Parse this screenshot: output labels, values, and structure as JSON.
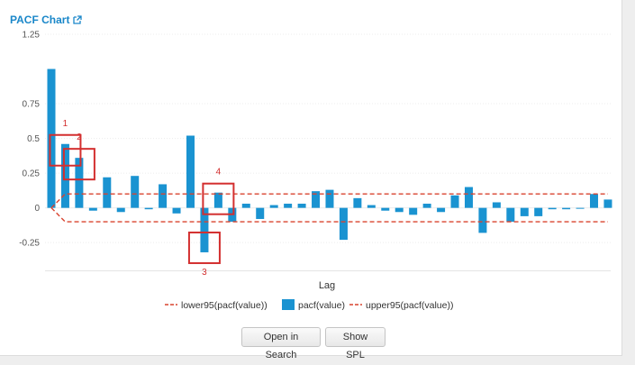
{
  "header": {
    "title": "PACF Chart",
    "popout_icon": "external-link-icon"
  },
  "buttons": {
    "open_in_search": "Open in Search",
    "show_spl": "Show SPL"
  },
  "annotations": [
    {
      "label": "1",
      "lag": 1
    },
    {
      "label": "2",
      "lag": 2
    },
    {
      "label": "3",
      "lag": 11
    },
    {
      "label": "4",
      "lag": 12
    }
  ],
  "colors": {
    "bar": "#1a93d1",
    "bound": "#d9432f",
    "annotation": "#d32f2f",
    "title": "#1a87c9"
  },
  "chart_data": {
    "type": "bar",
    "xlabel": "Lag",
    "ylabel": "",
    "ylim": [
      -0.45,
      1.25
    ],
    "yticks": [
      -0.25,
      0,
      0.25,
      0.5,
      0.75,
      1.25
    ],
    "ytick_labels": [
      "-0.25",
      "0",
      "0.25",
      "0.5",
      "0.75",
      "1.25"
    ],
    "legend_position": "bottom",
    "x": [
      0,
      1,
      2,
      3,
      4,
      5,
      6,
      7,
      8,
      9,
      10,
      11,
      12,
      13,
      14,
      15,
      16,
      17,
      18,
      19,
      20,
      21,
      22,
      23,
      24,
      25,
      26,
      27,
      28,
      29,
      30,
      31,
      32,
      33,
      34,
      35,
      36,
      37,
      38,
      39,
      40
    ],
    "series": [
      {
        "name": "lower95(pacf(value))",
        "kind": "line",
        "dashed": true,
        "color": "#d9432f",
        "values": [
          0,
          -0.1,
          -0.1,
          -0.1,
          -0.1,
          -0.1,
          -0.1,
          -0.1,
          -0.1,
          -0.1,
          -0.1,
          -0.1,
          -0.1,
          -0.1,
          -0.1,
          -0.1,
          -0.1,
          -0.1,
          -0.1,
          -0.1,
          -0.1,
          -0.1,
          -0.1,
          -0.1,
          -0.1,
          -0.1,
          -0.1,
          -0.1,
          -0.1,
          -0.1,
          -0.1,
          -0.1,
          -0.1,
          -0.1,
          -0.1,
          -0.1,
          -0.1,
          -0.1,
          -0.1,
          -0.1,
          -0.1
        ]
      },
      {
        "name": "pacf(value)",
        "kind": "bar",
        "color": "#1a93d1",
        "values": [
          1.0,
          0.46,
          0.36,
          -0.02,
          0.22,
          -0.03,
          0.23,
          -0.01,
          0.17,
          -0.04,
          0.52,
          -0.32,
          0.11,
          -0.1,
          0.03,
          -0.08,
          0.02,
          0.03,
          0.03,
          0.12,
          0.13,
          -0.23,
          0.07,
          0.02,
          -0.02,
          -0.03,
          -0.05,
          0.03,
          -0.03,
          0.09,
          0.15,
          -0.18,
          0.04,
          -0.1,
          -0.06,
          -0.06,
          -0.01,
          -0.01,
          0.0,
          0.1,
          0.06
        ]
      },
      {
        "name": "upper95(pacf(value))",
        "kind": "line",
        "dashed": true,
        "color": "#d9432f",
        "values": [
          0,
          0.1,
          0.1,
          0.1,
          0.1,
          0.1,
          0.1,
          0.1,
          0.1,
          0.1,
          0.1,
          0.1,
          0.1,
          0.1,
          0.1,
          0.1,
          0.1,
          0.1,
          0.1,
          0.1,
          0.1,
          0.1,
          0.1,
          0.1,
          0.1,
          0.1,
          0.1,
          0.1,
          0.1,
          0.1,
          0.1,
          0.1,
          0.1,
          0.1,
          0.1,
          0.1,
          0.1,
          0.1,
          0.1,
          0.1,
          0.1
        ]
      }
    ]
  }
}
